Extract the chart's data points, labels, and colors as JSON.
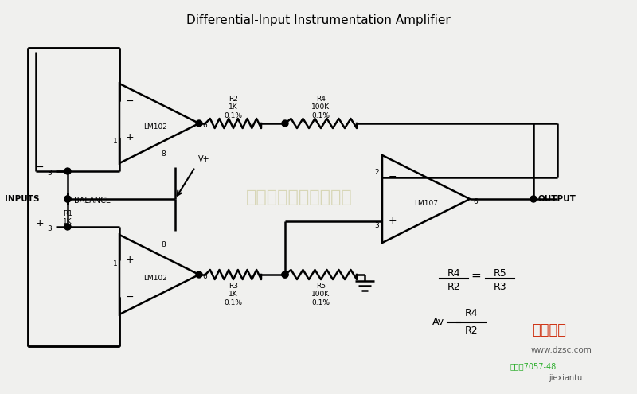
{
  "title": "Differential-Input Instrumentation Amplifier",
  "title_fontsize": 11,
  "bg_color": "#f0f0ee",
  "line_color": "#000000",
  "watermark_text": "杭州将睿科技有限公司",
  "website_text": "www.dzsc.com",
  "bottom_text1": "赋件号7057-48",
  "bottom_text2": "jiexiantu",
  "site_name": "维库一卡",
  "lm102_label": "LM102",
  "lm107_label": "LM107",
  "inputs_label": "INPUTS",
  "output_label": "OUTPUT",
  "balance_label": "BALANCE",
  "vplus_label": "V+",
  "formula1_top": "R4",
  "formula1_bot": "R2",
  "formula1_eq": "=",
  "formula2_top": "R5",
  "formula2_bot": "R3",
  "formula3_pre": "Av",
  "formula3_top": "R4",
  "formula3_bot": "R2"
}
